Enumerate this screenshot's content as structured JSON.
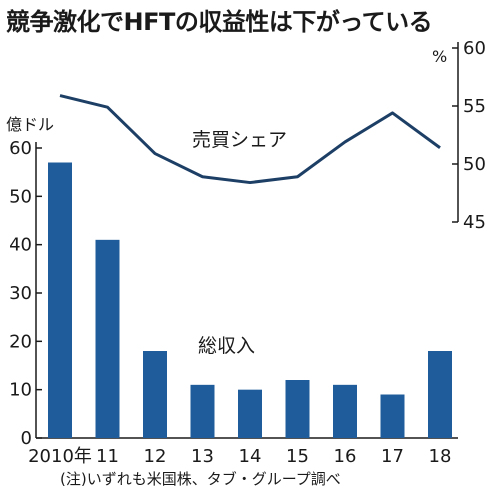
{
  "title": "競争激化でHFTの収益性は下がっている",
  "note": "(注)いずれも米国株、タブ・グループ調べ",
  "colors": {
    "bar": "#1f5c9b",
    "line": "#1d3f66",
    "axis": "#1a1a1a"
  },
  "chart_data": {
    "type": "bar",
    "categories": [
      "2010年",
      "11",
      "12",
      "13",
      "14",
      "15",
      "16",
      "17",
      "18"
    ],
    "left_axis": {
      "unit": "億ドル",
      "ylim": [
        0,
        60
      ],
      "ticks": [
        0,
        10,
        20,
        30,
        40,
        50,
        60
      ]
    },
    "right_axis": {
      "unit": "%",
      "ylim": [
        40,
        60
      ],
      "ticks": [
        45,
        50,
        55,
        60
      ]
    },
    "series": [
      {
        "name": "総収入",
        "type": "bar",
        "axis": "left",
        "values": [
          57,
          41,
          18,
          11,
          10,
          12,
          11,
          9,
          18
        ]
      },
      {
        "name": "売買シェア",
        "type": "line",
        "axis": "right",
        "values": [
          55.9,
          54.9,
          50.9,
          48.9,
          48.4,
          48.9,
          51.9,
          54.4,
          51.4
        ]
      }
    ]
  }
}
